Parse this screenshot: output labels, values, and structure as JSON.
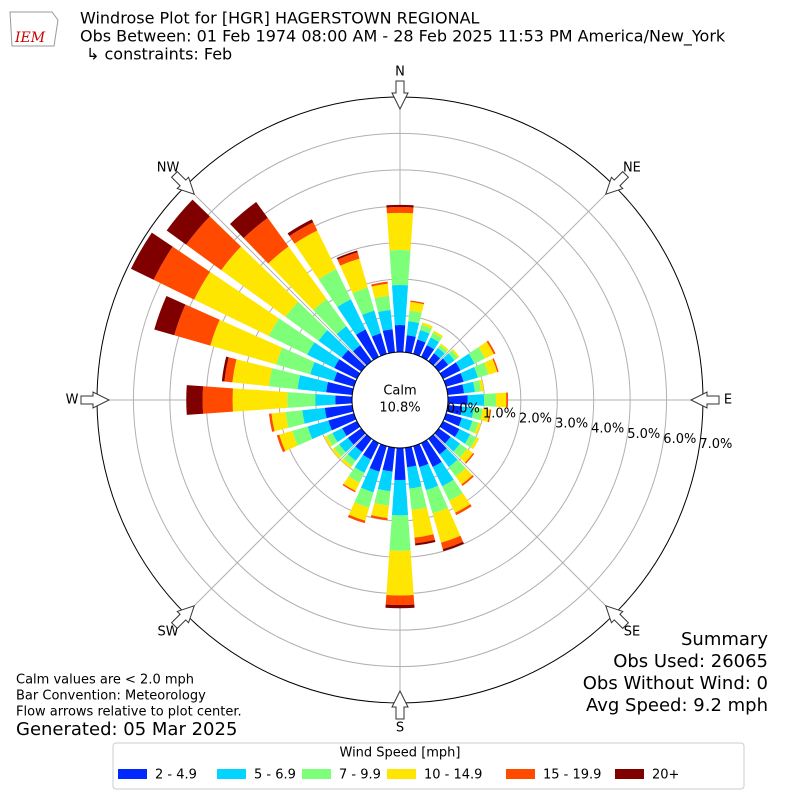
{
  "chart_data": {
    "type": "windrose",
    "logo": "IEM",
    "title": "Windrose Plot for [HGR] HAGERSTOWN REGIONAL",
    "subtitle": "Obs Between: 01 Feb 1974 08:00 AM - 28 Feb 2025 11:53 PM America/New_York",
    "constraints": "↳ constraints: Feb",
    "compass_labels": [
      "N",
      "NE",
      "E",
      "SE",
      "S",
      "SW",
      "W",
      "NW"
    ],
    "calm_label": "Calm",
    "calm_value": 10.8,
    "calm_value_label": "10.8%",
    "rlim": [
      0,
      7
    ],
    "rticks": [
      {
        "value": 0,
        "label": "0.0%"
      },
      {
        "value": 1,
        "label": "1.0%"
      },
      {
        "value": 2,
        "label": "2.0%"
      },
      {
        "value": 3,
        "label": "3.0%"
      },
      {
        "value": 4,
        "label": "4.0%"
      },
      {
        "value": 5,
        "label": "5.0%"
      },
      {
        "value": 6,
        "label": "6.0%"
      },
      {
        "value": 7,
        "label": "7.0%"
      }
    ],
    "directions": [
      0,
      10,
      20,
      30,
      40,
      50,
      60,
      70,
      80,
      90,
      100,
      110,
      120,
      130,
      140,
      150,
      160,
      170,
      180,
      190,
      200,
      210,
      220,
      230,
      240,
      250,
      260,
      270,
      280,
      290,
      300,
      310,
      320,
      330,
      340,
      350
    ],
    "legend_title": "Wind Speed [mph]",
    "series": [
      {
        "name": "2 - 4.9",
        "color": "#0028ff",
        "values": [
          0.74,
          0.47,
          0.41,
          0.36,
          0.27,
          0.32,
          0.53,
          0.5,
          0.45,
          0.54,
          0.4,
          0.45,
          0.5,
          0.4,
          0.53,
          0.73,
          0.6,
          0.54,
          0.88,
          0.66,
          0.73,
          0.5,
          0.45,
          0.45,
          0.45,
          0.73,
          0.76,
          0.46,
          0.72,
          0.57,
          0.69,
          0.66,
          0.54,
          0.84,
          0.59,
          0.64
        ]
      },
      {
        "name": "5 - 6.9",
        "color": "#00d4ff",
        "values": [
          1.1,
          0.39,
          0.27,
          0.24,
          0.18,
          0.21,
          0.43,
          0.41,
          0.3,
          0.45,
          0.32,
          0.3,
          0.33,
          0.32,
          0.43,
          0.59,
          0.66,
          0.59,
          0.97,
          0.54,
          0.59,
          0.41,
          0.3,
          0.3,
          0.3,
          0.59,
          0.62,
          0.55,
          0.79,
          0.68,
          0.83,
          0.79,
          0.65,
          0.92,
          0.65,
          0.53
        ]
      },
      {
        "name": "7 - 9.9",
        "color": "#7dff7a",
        "values": [
          0.96,
          0.29,
          0.15,
          0.14,
          0.1,
          0.12,
          0.32,
          0.3,
          0.17,
          0.33,
          0.24,
          0.17,
          0.19,
          0.24,
          0.32,
          0.44,
          0.66,
          0.59,
          0.97,
          0.4,
          0.44,
          0.3,
          0.17,
          0.17,
          0.17,
          0.44,
          0.46,
          0.77,
          0.79,
          0.97,
          1.17,
          1.12,
          0.92,
          0.92,
          0.65,
          0.39
        ]
      },
      {
        "name": "10 - 14.9",
        "color": "#ffe600",
        "values": [
          1.02,
          0.24,
          0.07,
          0.06,
          0.05,
          0.05,
          0.27,
          0.25,
          0.08,
          0.28,
          0.2,
          0.08,
          0.08,
          0.2,
          0.27,
          0.37,
          0.84,
          0.76,
          1.23,
          0.34,
          0.37,
          0.25,
          0.08,
          0.08,
          0.08,
          0.37,
          0.39,
          1.5,
          1.01,
          1.88,
          2.28,
          2.18,
          1.78,
          1.18,
          0.83,
          0.33
        ]
      },
      {
        "name": "15 - 19.9",
        "color": "#ff4a00",
        "values": [
          0.16,
          0.04,
          0,
          0,
          0,
          0,
          0.05,
          0.04,
          0,
          0.05,
          0.04,
          0,
          0,
          0.04,
          0.05,
          0.07,
          0.18,
          0.16,
          0.26,
          0.06,
          0.07,
          0.04,
          0,
          0,
          0,
          0.07,
          0.07,
          0.82,
          0.22,
          1.03,
          1.24,
          1.19,
          0.97,
          0.25,
          0.18,
          0.06
        ]
      },
      {
        "name": "20+",
        "color": "#800000",
        "values": [
          0.06,
          0,
          0,
          0,
          0,
          0,
          0,
          0,
          0,
          0,
          0,
          0,
          0,
          0,
          0,
          0,
          0.06,
          0.06,
          0.09,
          0,
          0,
          0,
          0,
          0,
          0,
          0,
          0,
          0.45,
          0.07,
          0.57,
          0.69,
          0.66,
          0.54,
          0.09,
          0.05,
          0
        ]
      }
    ],
    "notes": [
      "Calm values are < 2.0 mph",
      "Bar Convention: Meteorology",
      "Flow arrows relative to plot center."
    ],
    "generated": "Generated: 05 Mar 2025",
    "summary": [
      "Summary",
      "Obs Used: 26065",
      "Obs Without Wind: 0",
      "Avg Speed: 9.2 mph"
    ]
  }
}
